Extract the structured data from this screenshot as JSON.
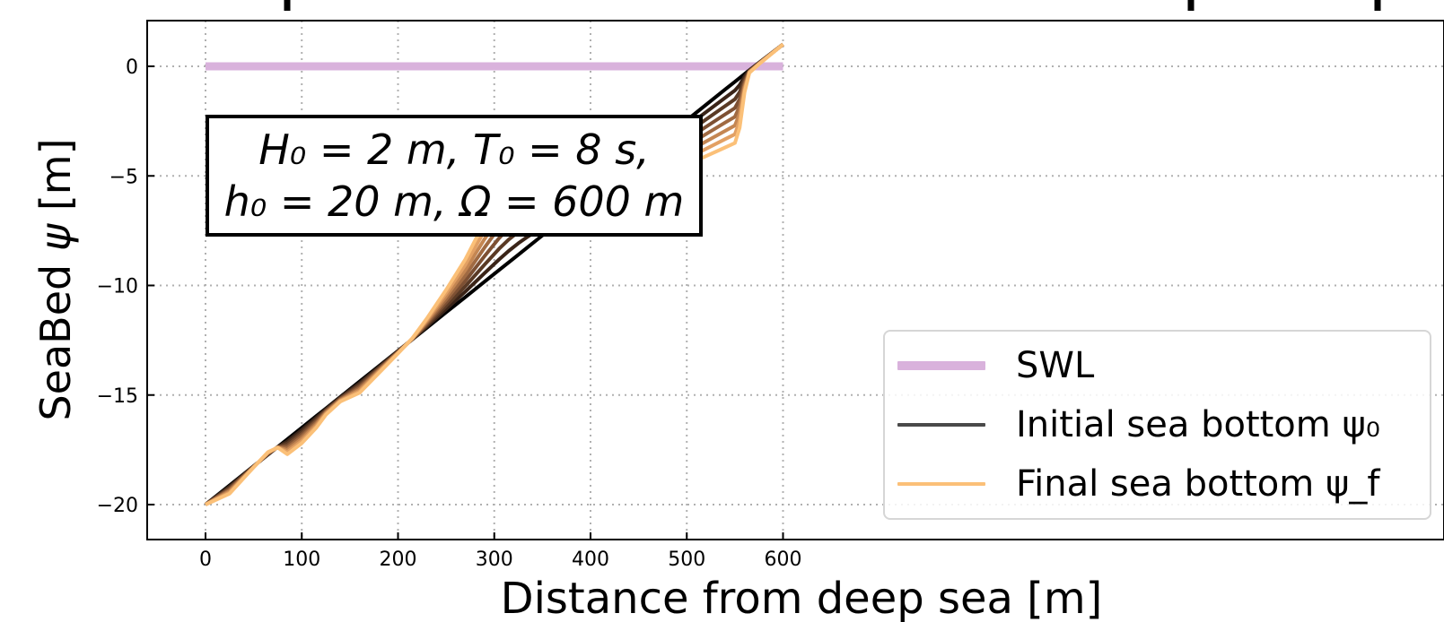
{
  "chart_data": {
    "type": "line",
    "xlabel": "Distance from deep sea [m]",
    "ylabel": "SeaBed ψ [m]",
    "xlim": [
      -30,
      625
    ],
    "ylim": [
      -21,
      2
    ],
    "xticks": [
      0,
      100,
      200,
      300,
      400,
      500,
      600
    ],
    "yticks": [
      0,
      -5,
      -10,
      -15,
      -20
    ],
    "xtick_labels": [
      "0",
      "100",
      "200",
      "300",
      "400",
      "500",
      "600"
    ],
    "ytick_labels": [
      "0",
      "−5",
      "−10",
      "−15",
      "−20"
    ],
    "grid": true,
    "annotation": {
      "line1": "H₀ = 2 m, T₀ = 8 s,",
      "line2": "h₀ = 20 m, Ω = 600 m"
    },
    "legend": {
      "position": "lower-right",
      "entries": [
        "SWL",
        "Initial sea bottom ψ₀",
        "Final sea bottom ψ_f"
      ]
    },
    "swl": {
      "name": "SWL",
      "color": "#d9b2dc",
      "x": [
        0,
        600
      ],
      "y": [
        0,
        0
      ]
    },
    "initial": {
      "name": "Initial sea bottom ψ₀",
      "color": "#000000",
      "x": [
        0,
        570,
        600
      ],
      "y": [
        -20,
        0,
        1
      ]
    },
    "final": {
      "name": "Final sea bottom ψ_f",
      "color": "#fbc078",
      "x": [
        0,
        25,
        50,
        65,
        75,
        85,
        100,
        115,
        125,
        140,
        160,
        180,
        200,
        215,
        230,
        250,
        270,
        290,
        305,
        315,
        325,
        335,
        345,
        360,
        380,
        400,
        420,
        450,
        480,
        510,
        540,
        550,
        555,
        560,
        565,
        575,
        600
      ],
      "y": [
        -20,
        -19.5,
        -18.3,
        -17.6,
        -17.4,
        -17.7,
        -17.2,
        -16.5,
        -15.9,
        -15.3,
        -14.9,
        -14.0,
        -13.1,
        -12.4,
        -11.5,
        -10.2,
        -8.8,
        -7.1,
        -5.9,
        -5.3,
        -4.95,
        -4.9,
        -5.05,
        -5.1,
        -5.25,
        -5.4,
        -5.4,
        -5.2,
        -4.8,
        -4.3,
        -3.7,
        -3.5,
        -2.8,
        -1.2,
        -0.3,
        0.1,
        1.0
      ]
    },
    "intermediate_series_colors": [
      "#3a2418",
      "#5a3a25",
      "#7d5033",
      "#a06a42",
      "#c48652",
      "#e2a063"
    ]
  }
}
